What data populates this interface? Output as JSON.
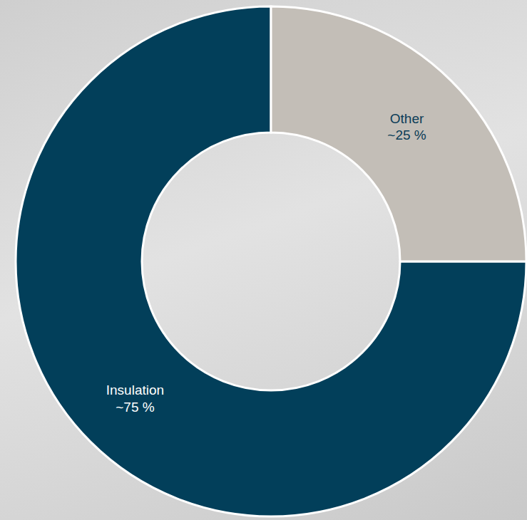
{
  "chart_data": {
    "type": "donut",
    "categories": [
      "Insulation",
      "Other"
    ],
    "values": [
      75,
      25
    ],
    "value_labels": [
      "~75 %",
      "~25 %"
    ],
    "colors": [
      "#023f5a",
      "#c3beb7"
    ],
    "data_labels": true
  }
}
